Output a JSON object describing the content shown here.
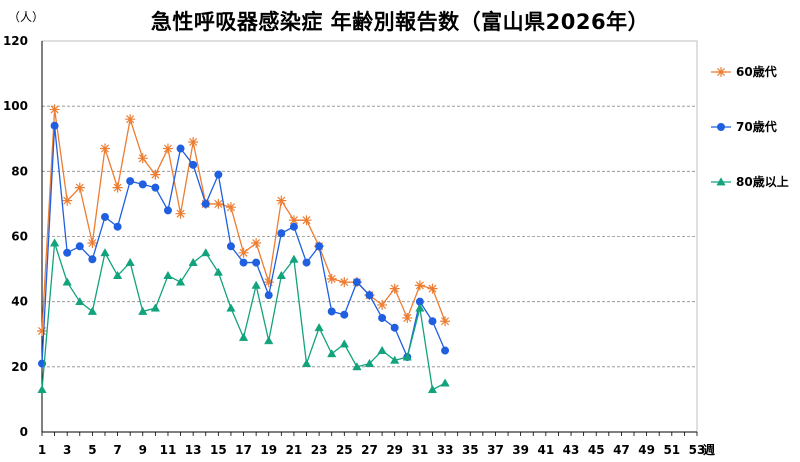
{
  "chart_data": {
    "type": "line",
    "title": "急性呼吸器感染症 年齢別報告数（富山県2026年）",
    "ylabel": "（人）",
    "xlabel": "週",
    "ylim": [
      0,
      120
    ],
    "yticks": [
      0,
      20,
      40,
      60,
      80,
      100,
      120
    ],
    "xlim": [
      1,
      53
    ],
    "xticks": [
      1,
      3,
      5,
      7,
      9,
      11,
      13,
      15,
      17,
      19,
      21,
      23,
      25,
      27,
      29,
      31,
      33,
      35,
      37,
      39,
      41,
      43,
      45,
      47,
      49,
      51,
      53
    ],
    "grid": "horizontal dashed",
    "legend_position": "right",
    "series": [
      {
        "name": "60歳代",
        "color": "#ED7D31",
        "marker": "star",
        "x": [
          1,
          2,
          3,
          4,
          5,
          6,
          7,
          8,
          9,
          10,
          11,
          12,
          13,
          14,
          15,
          16,
          17,
          18,
          19,
          20,
          21,
          22,
          23,
          24,
          25,
          26,
          27,
          28,
          29,
          30,
          31,
          32,
          33
        ],
        "values": [
          31,
          99,
          71,
          75,
          58,
          87,
          75,
          96,
          84,
          79,
          87,
          67,
          89,
          70,
          70,
          69,
          55,
          58,
          46,
          71,
          65,
          65,
          57,
          47,
          46,
          46,
          42,
          39,
          44,
          35,
          45,
          44,
          34
        ]
      },
      {
        "name": "70歳代",
        "color": "#1F5FE0",
        "marker": "circle",
        "x": [
          1,
          2,
          3,
          4,
          5,
          6,
          7,
          8,
          9,
          10,
          11,
          12,
          13,
          14,
          15,
          16,
          17,
          18,
          19,
          20,
          21,
          22,
          23,
          24,
          25,
          26,
          27,
          28,
          29,
          30,
          31,
          32,
          33
        ],
        "values": [
          21,
          94,
          55,
          57,
          53,
          66,
          63,
          77,
          76,
          75,
          68,
          87,
          82,
          70,
          79,
          57,
          52,
          52,
          42,
          61,
          63,
          52,
          57,
          37,
          36,
          46,
          42,
          35,
          32,
          23,
          40,
          34,
          25
        ]
      },
      {
        "name": "80歳以上",
        "color": "#12A37D",
        "marker": "triangle",
        "x": [
          1,
          2,
          3,
          4,
          5,
          6,
          7,
          8,
          9,
          10,
          11,
          12,
          13,
          14,
          15,
          16,
          17,
          18,
          19,
          20,
          21,
          22,
          23,
          24,
          25,
          26,
          27,
          28,
          29,
          30,
          31,
          32,
          33
        ],
        "values": [
          13,
          58,
          46,
          40,
          37,
          55,
          48,
          52,
          37,
          38,
          48,
          46,
          52,
          55,
          49,
          38,
          29,
          45,
          28,
          48,
          53,
          21,
          32,
          24,
          27,
          20,
          21,
          25,
          22,
          23,
          38,
          13,
          15
        ]
      }
    ]
  }
}
